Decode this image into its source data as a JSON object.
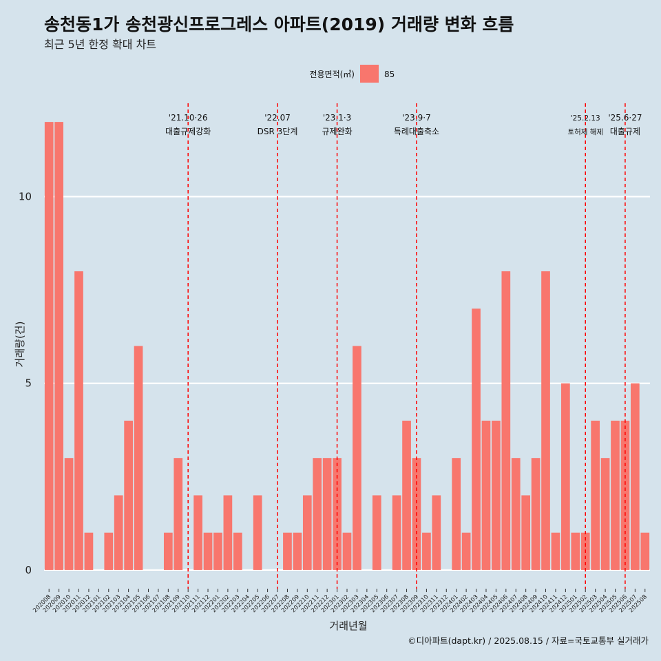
{
  "chart_data": {
    "type": "bar",
    "title": "송천동1가 송천광신프로그레스 아파트(2019) 거래량 변화 흐름",
    "subtitle": "최근 5년 한정 확대 차트",
    "xlabel": "거래년월",
    "ylabel": "거래량(건)",
    "ylim": [
      -0.5,
      12.5
    ],
    "yticks": [
      0,
      5,
      10
    ],
    "grid": "horizontal",
    "legend": {
      "title": "전용면적(㎡)",
      "placement": "top",
      "entries": [
        {
          "label": "85",
          "color": "#f8766d"
        }
      ]
    },
    "caption": "©디아파트(dapt.kr) / 2025.08.15 / 자료=국토교통부 실거래가",
    "categories": [
      "202008",
      "202009",
      "202010",
      "202011",
      "202012",
      "202101",
      "202102",
      "202103",
      "202104",
      "202105",
      "202106",
      "202107",
      "202108",
      "202109",
      "202110",
      "202111",
      "202112",
      "202201",
      "202202",
      "202203",
      "202204",
      "202205",
      "202206",
      "202207",
      "202208",
      "202209",
      "202210",
      "202211",
      "202212",
      "202301",
      "202302",
      "202303",
      "202304",
      "202305",
      "202306",
      "202307",
      "202308",
      "202309",
      "202310",
      "202311",
      "202312",
      "202401",
      "202402",
      "202403",
      "202404",
      "202405",
      "202406",
      "202407",
      "202408",
      "202409",
      "202410",
      "202411",
      "202412",
      "202501",
      "202502",
      "202503",
      "202504",
      "202505",
      "202506",
      "202507",
      "202508"
    ],
    "series": [
      {
        "name": "85",
        "color": "#f8766d",
        "values": [
          12,
          12,
          3,
          8,
          1,
          0,
          1,
          2,
          4,
          6,
          0,
          0,
          1,
          3,
          0,
          2,
          1,
          1,
          2,
          1,
          0,
          2,
          0,
          0,
          1,
          1,
          2,
          3,
          3,
          3,
          1,
          6,
          0,
          2,
          0,
          2,
          4,
          3,
          1,
          2,
          0,
          3,
          1,
          7,
          4,
          4,
          8,
          3,
          2,
          3,
          8,
          1,
          5,
          1,
          1,
          4,
          3,
          4,
          4,
          5,
          1
        ]
      }
    ],
    "annotations": [
      {
        "x": "202110",
        "lines": [
          "'21.10·26",
          "대출규제강화"
        ],
        "color": "#ff0000"
      },
      {
        "x": "202207",
        "lines": [
          "'22.07",
          "DSR 3단계"
        ],
        "color": "#ff0000"
      },
      {
        "x": "202301",
        "lines": [
          "'23.1·3",
          "규제완화"
        ],
        "color": "#ff0000"
      },
      {
        "x": "202309",
        "lines": [
          "'23.9·7",
          "특례대출축소"
        ],
        "color": "#ff0000"
      },
      {
        "x": "202502",
        "lines": [
          "'25.2.13",
          "토허제 해제"
        ],
        "color": "#ff0000",
        "small": true
      },
      {
        "x": "202506",
        "lines": [
          "'25.6·27",
          "대출규제"
        ],
        "color": "#ff0000"
      }
    ]
  }
}
